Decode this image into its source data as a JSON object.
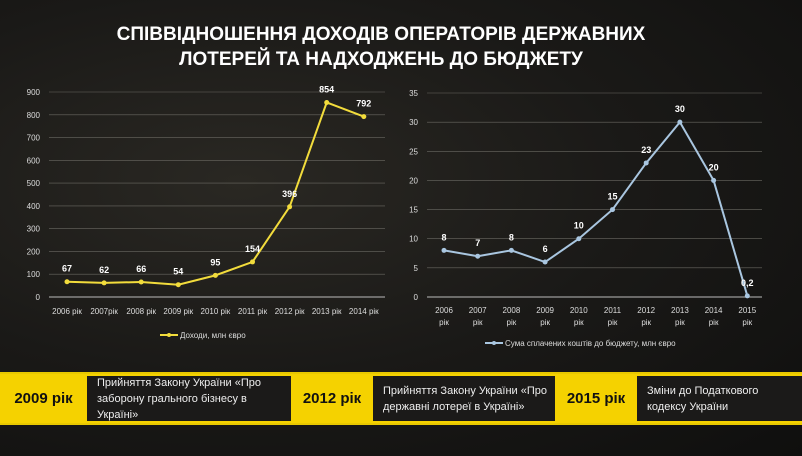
{
  "title_lines": [
    "СПІВВІДНОШЕННЯ ДОХОДІВ ОПЕРАТОРІВ ДЕРЖАВНИХ",
    "ЛОТЕРЕЙ ТА НАДХОДЖЕНЬ ДО БЮДЖЕТУ"
  ],
  "chart_data": [
    {
      "type": "line",
      "categories": [
        "2006 рік",
        "2007рік",
        "2008 рік",
        "2009 рік",
        "2010 рік",
        "2011 рік",
        "2012 рік",
        "2013 рік",
        "2014 рік"
      ],
      "series": [
        {
          "name": "Доходи, млн євро",
          "values": [
            67,
            62,
            66,
            54,
            95,
            154,
            396,
            854,
            792
          ],
          "labels": [
            "67",
            "62",
            "66",
            "54",
            "95",
            "154",
            "396",
            "854",
            "792"
          ],
          "color": "#f2dc3c"
        }
      ],
      "ylim": [
        0,
        900
      ],
      "yticks": [
        "0",
        "100",
        "200",
        "300",
        "400",
        "500",
        "600",
        "700",
        "800",
        "900"
      ],
      "grid": true,
      "legend": "bottom"
    },
    {
      "type": "line",
      "categories": [
        "2006 рік",
        "2007 рік",
        "2008 рік",
        "2009 рік",
        "2010 рік",
        "2011 рік",
        "2012 рік",
        "2013 рік",
        "2014 рік",
        "2015 рік"
      ],
      "series": [
        {
          "name": "Сума сплачених коштів до бюджету, млн євро",
          "values": [
            8,
            7,
            8,
            6,
            10,
            15,
            23,
            30,
            20,
            0.2
          ],
          "labels": [
            "8",
            "7",
            "8",
            "6",
            "10",
            "15",
            "23",
            "30",
            "20",
            "0,2"
          ],
          "color": "#a9c6e0"
        }
      ],
      "ylim": [
        0,
        35
      ],
      "yticks": [
        "0",
        "5",
        "10",
        "15",
        "20",
        "25",
        "30",
        "35"
      ],
      "grid": true,
      "legend": "bottom"
    }
  ],
  "events": [
    {
      "year": "2009 рік",
      "text": "Прийняття Закону України «Про заборону грального бізнесу в Україні»"
    },
    {
      "year": "2012 рік",
      "text": "Прийняття Закону України «Про державні лотереї в Україні»"
    },
    {
      "year": "2015 рік",
      "text": "Зміни до Податкового кодексу України"
    }
  ]
}
